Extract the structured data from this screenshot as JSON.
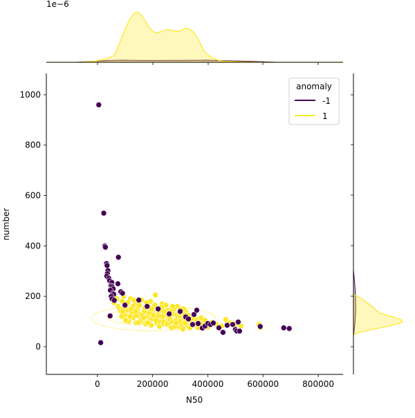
{
  "chart_data": {
    "type": "scatter",
    "xlabel": "N50",
    "ylabel": "number",
    "xlim": [
      -185000,
      890000
    ],
    "ylim": [
      -110,
      1085
    ],
    "x_ticks": [
      0,
      200000,
      400000,
      600000,
      800000
    ],
    "x_tick_labels": [
      "0",
      "200000",
      "400000",
      "600000",
      "800000"
    ],
    "y_ticks": [
      0,
      200,
      400,
      600,
      800,
      1000
    ],
    "y_tick_labels": [
      "0",
      "200",
      "400",
      "600",
      "800",
      "1000"
    ],
    "grid": false,
    "legend": {
      "title": "anomaly",
      "placement": "top-right"
    },
    "top_marginal": {
      "type": "kde",
      "scale_label": "1e−6"
    },
    "right_marginal": {
      "type": "kde"
    },
    "series": [
      {
        "name": "-1",
        "color": "#440154",
        "points": [
          [
            5000,
            960
          ],
          [
            23000,
            530
          ],
          [
            27000,
            400
          ],
          [
            29000,
            395
          ],
          [
            33000,
            330
          ],
          [
            35000,
            322
          ],
          [
            38000,
            302
          ],
          [
            36000,
            290
          ],
          [
            34000,
            280
          ],
          [
            41000,
            272
          ],
          [
            44000,
            262
          ],
          [
            52000,
            255
          ],
          [
            49000,
            242
          ],
          [
            53000,
            238
          ],
          [
            57000,
            230
          ],
          [
            47000,
            224
          ],
          [
            56000,
            212
          ],
          [
            59000,
            208
          ],
          [
            50000,
            200
          ],
          [
            53000,
            190
          ],
          [
            61000,
            184
          ],
          [
            74000,
            250
          ],
          [
            76000,
            355
          ],
          [
            85000,
            218
          ],
          [
            91000,
            212
          ],
          [
            46000,
            122
          ],
          [
            12000,
            16
          ],
          [
            100000,
            165
          ],
          [
            150000,
            185
          ],
          [
            180000,
            160
          ],
          [
            220000,
            150
          ],
          [
            260000,
            130
          ],
          [
            300000,
            140
          ],
          [
            320000,
            118
          ],
          [
            330000,
            110
          ],
          [
            345000,
            88
          ],
          [
            350000,
            128
          ],
          [
            360000,
            145
          ],
          [
            365000,
            92
          ],
          [
            380000,
            74
          ],
          [
            390000,
            82
          ],
          [
            400000,
            92
          ],
          [
            410000,
            88
          ],
          [
            420000,
            94
          ],
          [
            440000,
            75
          ],
          [
            455000,
            57
          ],
          [
            470000,
            85
          ],
          [
            490000,
            88
          ],
          [
            500000,
            68
          ],
          [
            505000,
            62
          ],
          [
            510000,
            98
          ],
          [
            515000,
            62
          ],
          [
            590000,
            80
          ],
          [
            675000,
            75
          ],
          [
            695000,
            72
          ]
        ]
      },
      {
        "name": "1",
        "color": "#fde725",
        "points": [
          [
            60000,
            175
          ],
          [
            70000,
            190
          ],
          [
            75000,
            160
          ],
          [
            80000,
            150
          ],
          [
            85000,
            140
          ],
          [
            90000,
            180
          ],
          [
            95000,
            200
          ],
          [
            100000,
            125
          ],
          [
            105000,
            165
          ],
          [
            110000,
            145
          ],
          [
            115000,
            105
          ],
          [
            120000,
            190
          ],
          [
            125000,
            135
          ],
          [
            130000,
            115
          ],
          [
            135000,
            170
          ],
          [
            140000,
            95
          ],
          [
            145000,
            150
          ],
          [
            150000,
            130
          ],
          [
            155000,
            115
          ],
          [
            160000,
            185
          ],
          [
            165000,
            100
          ],
          [
            170000,
            140
          ],
          [
            175000,
            90
          ],
          [
            180000,
            120
          ],
          [
            185000,
            160
          ],
          [
            190000,
            105
          ],
          [
            195000,
            85
          ],
          [
            200000,
            140
          ],
          [
            205000,
            115
          ],
          [
            210000,
            205
          ],
          [
            215000,
            95
          ],
          [
            220000,
            130
          ],
          [
            225000,
            80
          ],
          [
            230000,
            110
          ],
          [
            235000,
            170
          ],
          [
            240000,
            90
          ],
          [
            245000,
            125
          ],
          [
            250000,
            100
          ],
          [
            255000,
            145
          ],
          [
            260000,
            85
          ],
          [
            265000,
            115
          ],
          [
            270000,
            75
          ],
          [
            275000,
            130
          ],
          [
            280000,
            95
          ],
          [
            285000,
            105
          ],
          [
            290000,
            160
          ],
          [
            295000,
            80
          ],
          [
            300000,
            120
          ],
          [
            305000,
            90
          ],
          [
            310000,
            70
          ],
          [
            315000,
            110
          ],
          [
            320000,
            140
          ],
          [
            325000,
            85
          ],
          [
            330000,
            100
          ],
          [
            335000,
            75
          ],
          [
            340000,
            120
          ],
          [
            350000,
            95
          ],
          [
            360000,
            85
          ],
          [
            370000,
            100
          ],
          [
            380000,
            90
          ],
          [
            390000,
            105
          ],
          [
            400000,
            78
          ],
          [
            410000,
            95
          ],
          [
            430000,
            90
          ],
          [
            450000,
            82
          ],
          [
            465000,
            108
          ],
          [
            480000,
            95
          ],
          [
            500000,
            90
          ],
          [
            520000,
            82
          ],
          [
            585000,
            88
          ],
          [
            590000,
            75
          ],
          [
            88000,
            120
          ],
          [
            110000,
            175
          ],
          [
            128000,
            160
          ],
          [
            142000,
            125
          ],
          [
            158000,
            105
          ],
          [
            172000,
            155
          ],
          [
            188000,
            135
          ],
          [
            198000,
            110
          ],
          [
            208000,
            165
          ],
          [
            218000,
            120
          ],
          [
            228000,
            145
          ],
          [
            238000,
            100
          ],
          [
            248000,
            165
          ],
          [
            258000,
            120
          ],
          [
            268000,
            100
          ],
          [
            278000,
            150
          ],
          [
            288000,
            125
          ],
          [
            298000,
            100
          ],
          [
            308000,
            135
          ],
          [
            318000,
            95
          ],
          [
            328000,
            125
          ],
          [
            342000,
            100
          ],
          [
            355000,
            110
          ],
          [
            365000,
            75
          ],
          [
            375000,
            115
          ],
          [
            98000,
            155
          ],
          [
            118000,
            120
          ],
          [
            138000,
            140
          ],
          [
            162000,
            125
          ],
          [
            182000,
            95
          ],
          [
            202000,
            125
          ],
          [
            222000,
            100
          ],
          [
            242000,
            140
          ],
          [
            262000,
            110
          ],
          [
            282000,
            80
          ],
          [
            302000,
            150
          ],
          [
            322000,
            115
          ],
          [
            112000,
            100
          ],
          [
            132000,
            185
          ],
          [
            152000,
            165
          ],
          [
            192000,
            180
          ],
          [
            232000,
            155
          ],
          [
            272000,
            160
          ],
          [
            312000,
            150
          ],
          [
            92000,
            140
          ],
          [
            102000,
            105
          ],
          [
            122000,
            150
          ],
          [
            148000,
            95
          ],
          [
            168000,
            115
          ],
          [
            178000,
            175
          ],
          [
            196000,
            150
          ],
          [
            212000,
            105
          ],
          [
            236000,
            120
          ],
          [
            252000,
            90
          ],
          [
            266000,
            140
          ],
          [
            286000,
            95
          ],
          [
            296000,
            135
          ],
          [
            316000,
            125
          ],
          [
            336000,
            105
          ],
          [
            346000,
            115
          ]
        ]
      }
    ]
  }
}
